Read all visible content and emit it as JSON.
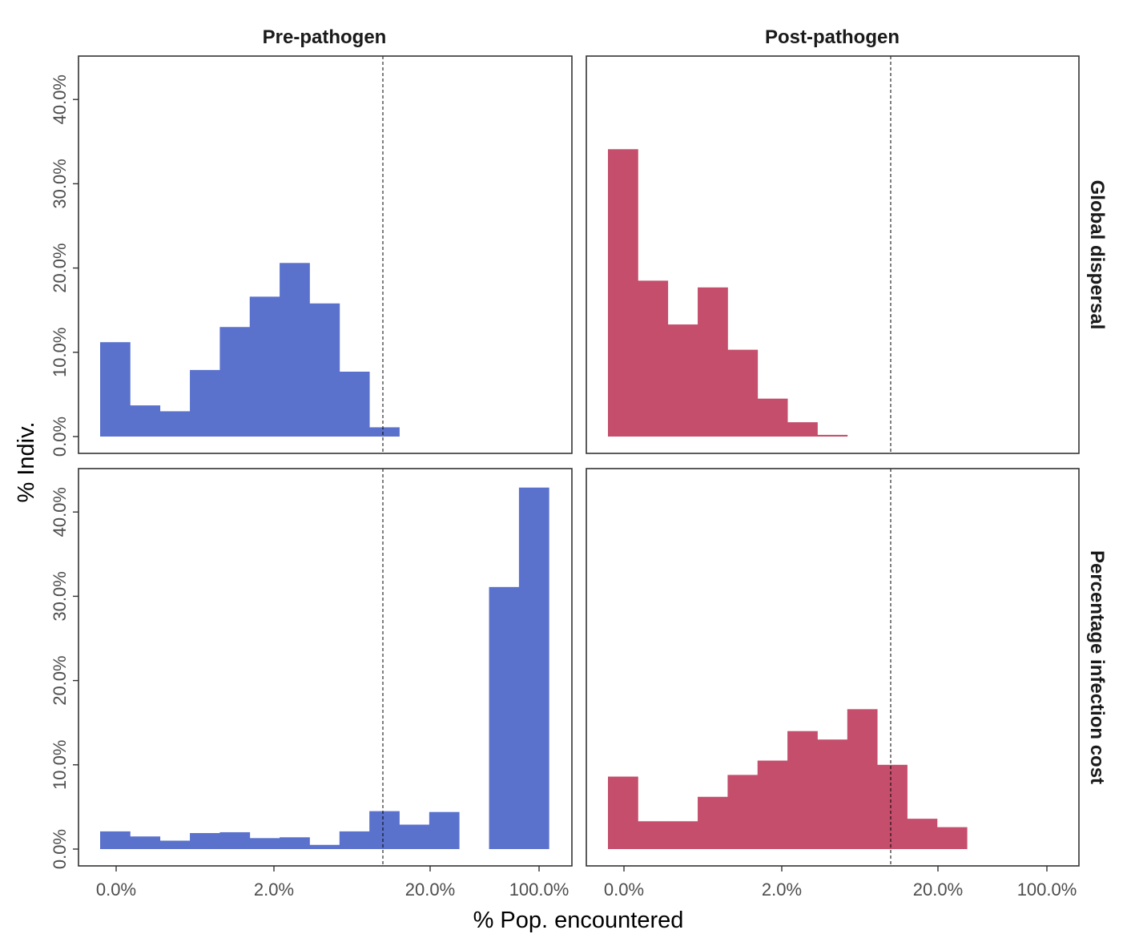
{
  "chart_data": {
    "type": "bar",
    "subtype": "faceted-histogram",
    "xlabel": "% Pop. encountered",
    "ylabel": "% Indiv.",
    "x_scale": "log",
    "x_ticks": [
      "0.0%",
      "2.0%",
      "20.0%",
      "100.0%"
    ],
    "y_ticks": [
      "0.0%",
      "10.0%",
      "20.0%",
      "30.0%",
      "40.0%"
    ],
    "ylim": [
      0,
      45
    ],
    "grid": false,
    "legend": "none",
    "vline_x_pct": 8.3,
    "columns": [
      "Pre-pathogen",
      "Post-pathogen"
    ],
    "rows": [
      "Global dispersal",
      "Percentage infection cost"
    ],
    "colors": {
      "Pre-pathogen": "#5a72cc",
      "Post-pathogen": "#c44e6c"
    },
    "panels": [
      {
        "column": "Pre-pathogen",
        "row": "Global dispersal",
        "values": [
          11.2,
          3.7,
          3.0,
          7.9,
          13.0,
          16.6,
          20.6,
          15.8,
          7.7,
          1.1,
          0,
          0,
          0,
          0,
          0
        ]
      },
      {
        "column": "Post-pathogen",
        "row": "Global dispersal",
        "values": [
          34.1,
          18.5,
          13.3,
          17.7,
          10.3,
          4.5,
          1.7,
          0.2,
          0,
          0,
          0,
          0,
          0,
          0,
          0
        ]
      },
      {
        "column": "Pre-pathogen",
        "row": "Percentage infection cost",
        "values": [
          2.1,
          1.5,
          1.0,
          1.9,
          2.0,
          1.3,
          1.4,
          0.5,
          2.1,
          4.5,
          2.9,
          4.4,
          0,
          31.1,
          42.9
        ]
      },
      {
        "column": "Post-pathogen",
        "row": "Percentage infection cost",
        "values": [
          8.6,
          3.3,
          3.3,
          6.2,
          8.8,
          10.5,
          14.0,
          13.0,
          16.6,
          10.0,
          3.6,
          2.6,
          0,
          0,
          0
        ]
      }
    ]
  }
}
